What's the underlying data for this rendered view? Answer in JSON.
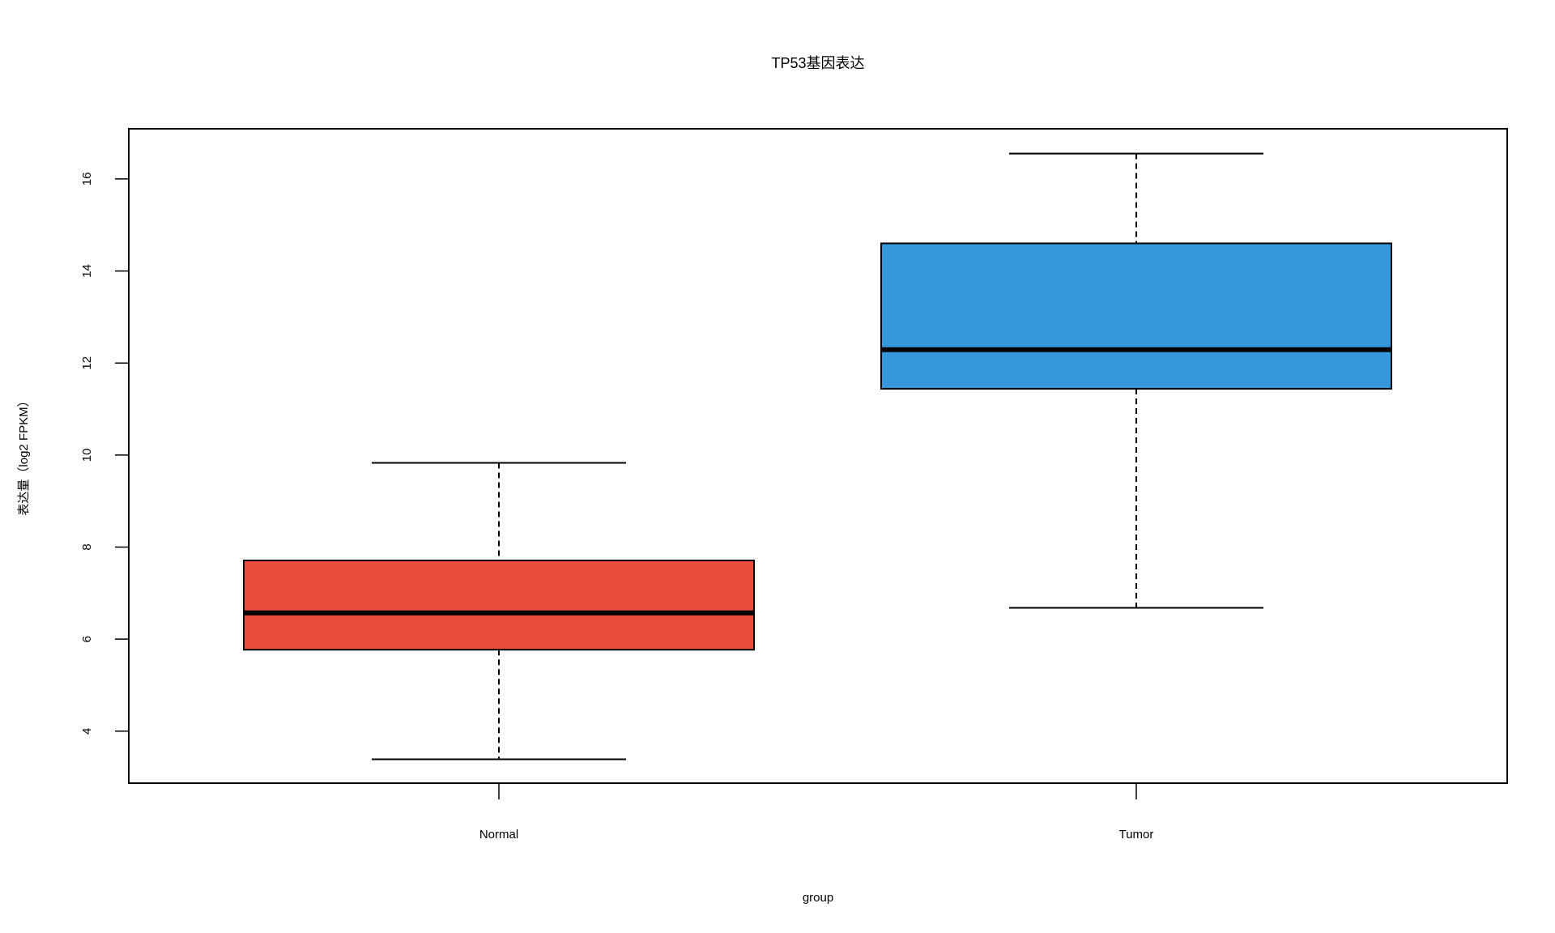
{
  "chart_data": {
    "type": "box",
    "title": "TP53基因表达",
    "xlabel": "group",
    "ylabel": "表达量（log2 FPKM）",
    "categories": [
      "Normal",
      "Tumor"
    ],
    "stats": [
      {
        "min": 3.39,
        "q1": 5.77,
        "median": 6.57,
        "q3": 7.71,
        "max": 9.83
      },
      {
        "min": 6.68,
        "q1": 11.44,
        "median": 12.29,
        "q3": 14.6,
        "max": 16.55
      }
    ],
    "colors": [
      "#e74c3c",
      "#3498db"
    ],
    "ylim": [
      2.87,
      17.09
    ],
    "yticks": [
      4,
      6,
      8,
      10,
      12,
      14,
      16
    ]
  }
}
